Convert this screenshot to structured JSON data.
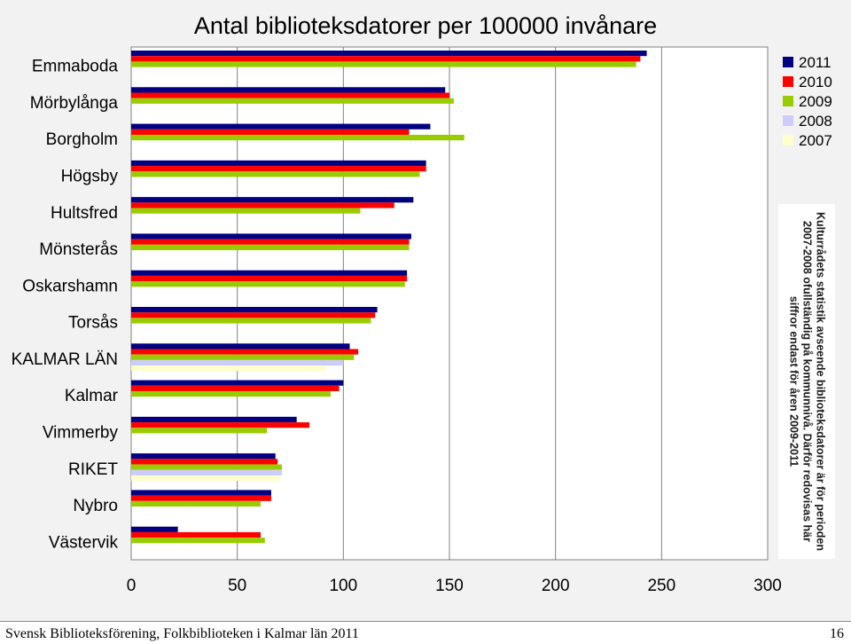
{
  "chart_data": {
    "type": "bar",
    "orientation": "horizontal",
    "title": "Antal biblioteksdatorer per 100000 invånare",
    "xlabel": "",
    "ylabel": "",
    "xlim": [
      0,
      300
    ],
    "xticks": [
      "0",
      "50",
      "100",
      "150",
      "200",
      "250",
      "300"
    ],
    "grid": true,
    "legend_position": "top-right",
    "categories": [
      "Emmaboda",
      "Mörbylånga",
      "Borgholm",
      "Högsby",
      "Hultsfred",
      "Mönsterås",
      "Oskarshamn",
      "Torsås",
      "KALMAR LÄN",
      "Kalmar",
      "Vimmerby",
      "RIKET",
      "Nybro",
      "Västervik"
    ],
    "series": [
      {
        "name": "2011",
        "color": "#000080",
        "values": [
          243,
          148,
          141,
          139,
          133,
          132,
          130,
          116,
          103,
          100,
          78,
          68,
          66,
          22
        ]
      },
      {
        "name": "2010",
        "color": "#ff0000",
        "values": [
          240,
          150,
          131,
          139,
          124,
          131,
          130,
          115,
          107,
          98,
          84,
          69,
          66,
          61
        ]
      },
      {
        "name": "2009",
        "color": "#99cc00",
        "values": [
          238,
          152,
          157,
          136,
          108,
          131,
          129,
          113,
          105,
          94,
          64,
          71,
          61,
          63
        ]
      },
      {
        "name": "2008",
        "color": "#ccccff",
        "values": [
          null,
          null,
          null,
          null,
          null,
          null,
          null,
          null,
          100,
          null,
          null,
          71,
          null,
          null
        ]
      },
      {
        "name": "2007",
        "color": "#ffffcc",
        "values": [
          null,
          null,
          null,
          null,
          null,
          null,
          null,
          null,
          92,
          null,
          null,
          70,
          null,
          null
        ]
      }
    ]
  },
  "note": "Kulturrådets statistik avseende biblioteksdatorer är för perioden 2007-2008 ofullständig på kommunnivå. Därför redovisas här siffror endast för åren 2009-2011",
  "footer": {
    "source": "Svensk Biblioteksförening, Folkbiblioteken i Kalmar län 2011",
    "page_number": "16"
  }
}
